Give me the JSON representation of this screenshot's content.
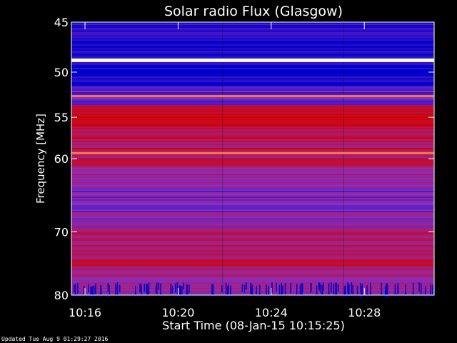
{
  "chart_data": {
    "type": "heatmap",
    "title": "Solar radio Flux (Glasgow)",
    "xlabel": "Start Time (08-Jan-15 10:15:25)",
    "ylabel": "Frequency [MHz]",
    "y_axis_scale": "log",
    "ylim": [
      80,
      45
    ],
    "xlim": [
      "10:15:25",
      "10:31:00"
    ],
    "x_ticks": [
      {
        "label": "10:16",
        "minute": 16
      },
      {
        "label": "10:20",
        "minute": 20
      },
      {
        "label": "10:24",
        "minute": 24
      },
      {
        "label": "10:28",
        "minute": 28
      }
    ],
    "y_ticks": [
      45,
      50,
      55,
      60,
      70,
      80
    ],
    "segment_boundaries_min": [
      21.9,
      27.1
    ],
    "colors": {
      "low": "#0000cc",
      "mid": "#8a2fc0",
      "high": "#d40000",
      "peak": "#ffffff"
    },
    "bright_lines_mhz": [
      48.8,
      52.6,
      59.3
    ]
  },
  "footer": {
    "updated": "Updated Tue Aug  9 01:29:27 2016"
  }
}
